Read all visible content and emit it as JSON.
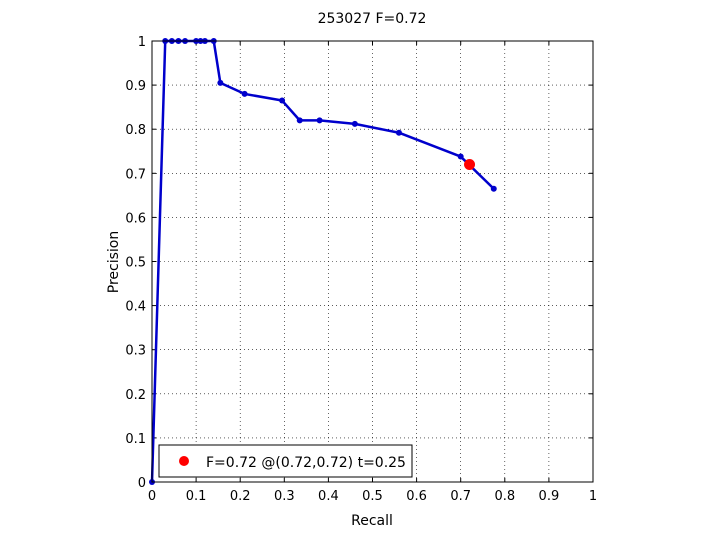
{
  "chart_data": {
    "type": "line",
    "title": "253027 F=0.72",
    "xlabel": "Recall",
    "ylabel": "Precision",
    "xlim": [
      0,
      1
    ],
    "ylim": [
      0,
      1
    ],
    "grid": true,
    "x_ticks": [
      "0",
      "0.1",
      "0.2",
      "0.3",
      "0.4",
      "0.5",
      "0.6",
      "0.7",
      "0.8",
      "0.9",
      "1"
    ],
    "y_ticks": [
      "0",
      "0.1",
      "0.2",
      "0.3",
      "0.4",
      "0.5",
      "0.6",
      "0.7",
      "0.8",
      "0.9",
      "1"
    ],
    "series": [
      {
        "color": "#0000cc",
        "points": [
          [
            0.0,
            0.0
          ],
          [
            0.03,
            1.0
          ],
          [
            0.045,
            1.0
          ],
          [
            0.06,
            1.0
          ],
          [
            0.075,
            1.0
          ],
          [
            0.1,
            1.0
          ],
          [
            0.11,
            1.0
          ],
          [
            0.12,
            1.0
          ],
          [
            0.14,
            1.0
          ],
          [
            0.155,
            0.905
          ],
          [
            0.21,
            0.88
          ],
          [
            0.295,
            0.865
          ],
          [
            0.335,
            0.82
          ],
          [
            0.38,
            0.82
          ],
          [
            0.46,
            0.812
          ],
          [
            0.56,
            0.792
          ],
          [
            0.7,
            0.738
          ],
          [
            0.775,
            0.665
          ]
        ]
      }
    ],
    "highlight": {
      "x": 0.72,
      "y": 0.72,
      "color": "#ff0000",
      "legend": "F=0.72 @(0.72,0.72) t=0.25"
    },
    "legend_position": "bottom-left"
  }
}
